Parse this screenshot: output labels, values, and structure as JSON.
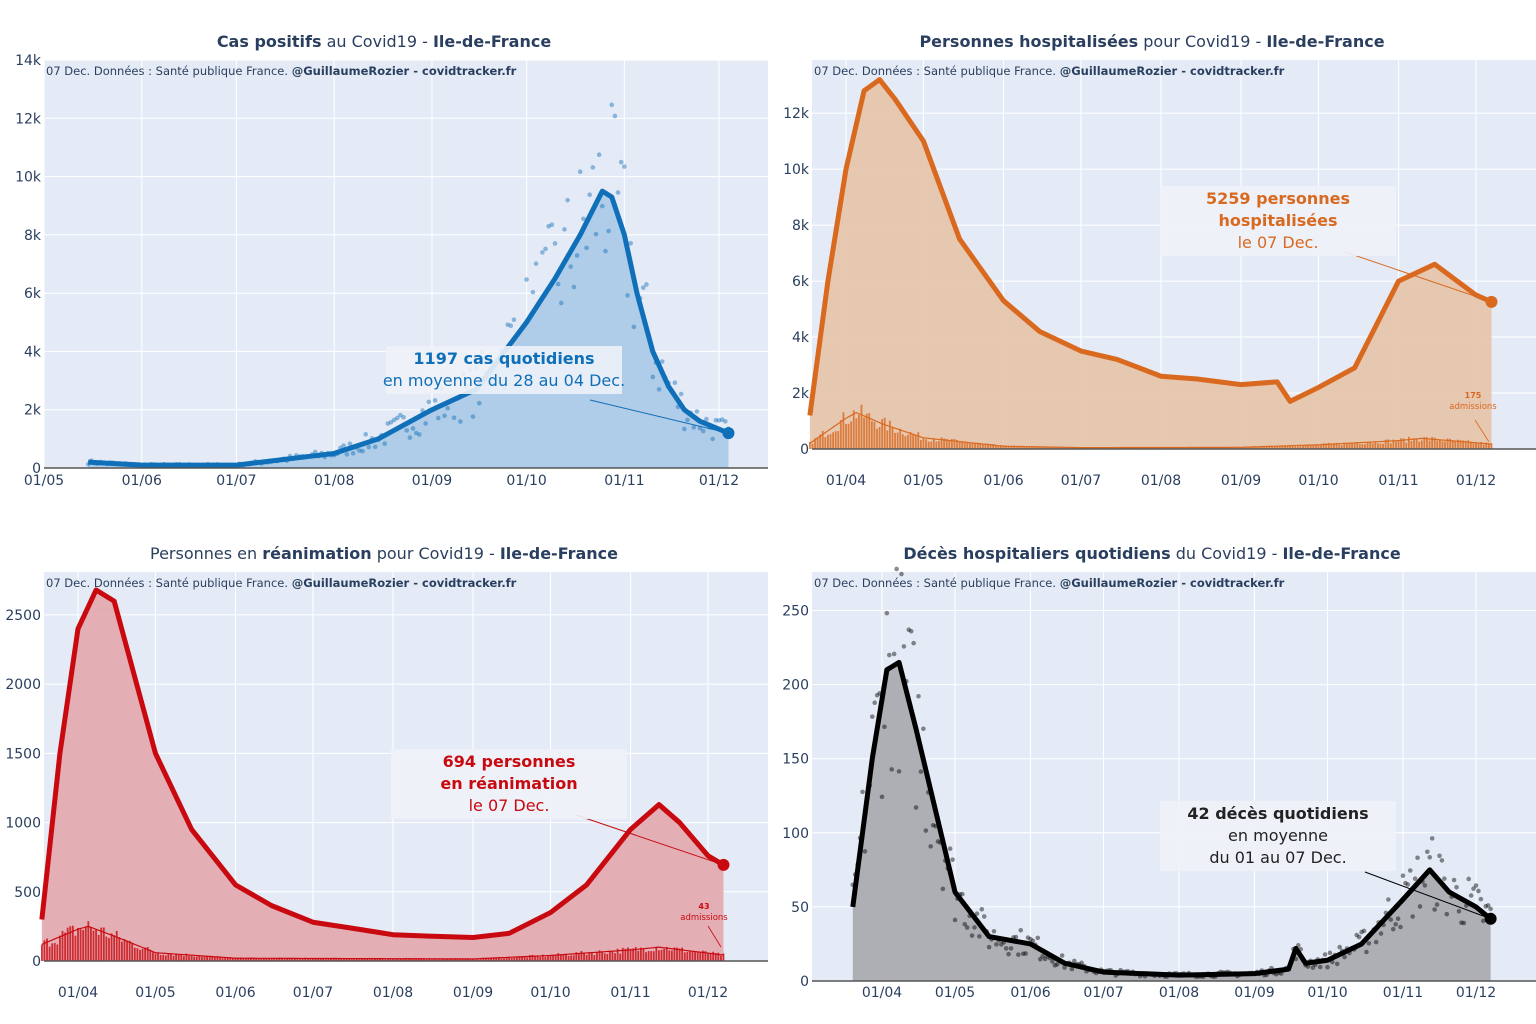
{
  "source_note": [
    "07 Dec. Données : Santé publique France. ",
    "@GuillaumeRozier - covidtracker.fr"
  ],
  "chart_data": [
    {
      "type": "line",
      "title": [
        {
          "text": "Cas positifs",
          "bold": true
        },
        {
          "text": " au Covid19 - ",
          "bold": false
        },
        {
          "text": "Ile-de-France",
          "bold": true
        }
      ],
      "color": "#0f6fb8",
      "fill": "#a9c9e7",
      "yticks": [
        0,
        2000,
        4000,
        6000,
        8000,
        10000,
        12000,
        14000
      ],
      "ytick_labels": [
        "0",
        "2k",
        "4k",
        "6k",
        "8k",
        "10k",
        "12k",
        "14k"
      ],
      "ylim": [
        0,
        14000
      ],
      "xticks": [
        "2020-05-01",
        "2020-06-01",
        "2020-07-01",
        "2020-08-01",
        "2020-09-01",
        "2020-10-01",
        "2020-11-01",
        "2020-12-01"
      ],
      "xtick_labels": [
        "01/05",
        "01/06",
        "01/07",
        "01/08",
        "01/09",
        "01/10",
        "01/11",
        "01/12"
      ],
      "scatter": true,
      "series": {
        "x": [
          "2020-05-15",
          "2020-06-01",
          "2020-07-01",
          "2020-08-01",
          "2020-08-15",
          "2020-09-01",
          "2020-09-15",
          "2020-10-01",
          "2020-10-10",
          "2020-10-18",
          "2020-10-25",
          "2020-10-28",
          "2020-11-01",
          "2020-11-05",
          "2020-11-10",
          "2020-11-15",
          "2020-11-20",
          "2020-11-25",
          "2020-12-04"
        ],
        "y": [
          200,
          100,
          100,
          500,
          1000,
          2000,
          2700,
          5000,
          6500,
          8000,
          9500,
          9300,
          8000,
          6000,
          4000,
          2800,
          2000,
          1600,
          1197
        ]
      },
      "annotation": {
        "lines": [
          "1197 cas quotidiens",
          "en moyenne du 28 au 04 Dec."
        ],
        "bold": [
          true,
          false
        ]
      }
    },
    {
      "type": "area",
      "title": [
        {
          "text": "Personnes hospitalisées",
          "bold": true
        },
        {
          "text": " pour Covid19 - ",
          "bold": false
        },
        {
          "text": "Ile-de-France",
          "bold": true
        }
      ],
      "color": "#d9691f",
      "fill": "#e6c3a8",
      "yticks": [
        0,
        2000,
        4000,
        6000,
        8000,
        10000,
        12000
      ],
      "ytick_labels": [
        "0",
        "2k",
        "4k",
        "6k",
        "8k",
        "10k",
        "12k"
      ],
      "ylim": [
        0,
        13900
      ],
      "xticks": [
        "2020-04-01",
        "2020-05-01",
        "2020-06-01",
        "2020-07-01",
        "2020-08-01",
        "2020-09-01",
        "2020-10-01",
        "2020-11-01",
        "2020-12-01"
      ],
      "xtick_labels": [
        "01/04",
        "01/05",
        "01/06",
        "01/07",
        "01/08",
        "01/09",
        "01/10",
        "01/11",
        "01/12"
      ],
      "scatter": false,
      "series": {
        "x": [
          "2020-03-18",
          "2020-03-25",
          "2020-04-01",
          "2020-04-08",
          "2020-04-14",
          "2020-04-20",
          "2020-05-01",
          "2020-05-15",
          "2020-06-01",
          "2020-06-15",
          "2020-07-01",
          "2020-07-15",
          "2020-08-01",
          "2020-08-15",
          "2020-09-01",
          "2020-09-15",
          "2020-09-20",
          "2020-10-01",
          "2020-10-15",
          "2020-11-01",
          "2020-11-15",
          "2020-12-01",
          "2020-12-07"
        ],
        "y": [
          1200,
          6000,
          10000,
          12800,
          13200,
          12500,
          11000,
          7500,
          5300,
          4200,
          3500,
          3200,
          2600,
          2500,
          2300,
          2400,
          1700,
          2200,
          2900,
          6000,
          6600,
          5500,
          5259
        ]
      },
      "admissions": {
        "x": [
          "2020-03-18",
          "2020-04-01",
          "2020-04-05",
          "2020-04-15",
          "2020-05-01",
          "2020-06-01",
          "2020-07-01",
          "2020-09-01",
          "2020-10-01",
          "2020-11-01",
          "2020-11-10",
          "2020-12-07"
        ],
        "y": [
          200,
          1100,
          1300,
          900,
          400,
          100,
          50,
          60,
          150,
          300,
          380,
          175
        ],
        "label": [
          "175",
          "admissions"
        ]
      },
      "annotation": {
        "lines": [
          "5259 personnes",
          "hospitalisées",
          "le 07 Dec."
        ],
        "bold": [
          true,
          true,
          false
        ]
      }
    },
    {
      "type": "area",
      "title": [
        {
          "text": "Personnes en ",
          "bold": false
        },
        {
          "text": "réanimation",
          "bold": true
        },
        {
          "text": " pour Covid19 - ",
          "bold": false
        },
        {
          "text": "Ile-de-France",
          "bold": true
        }
      ],
      "color": "#c80a10",
      "fill": "#e3a7ae",
      "yticks": [
        0,
        500,
        1000,
        1500,
        2000,
        2500
      ],
      "ytick_labels": [
        "0",
        "500",
        "1000",
        "1500",
        "2000",
        "2500"
      ],
      "ylim": [
        0,
        2810
      ],
      "xticks": [
        "2020-04-01",
        "2020-05-01",
        "2020-06-01",
        "2020-07-01",
        "2020-08-01",
        "2020-09-01",
        "2020-10-01",
        "2020-11-01",
        "2020-12-01"
      ],
      "xtick_labels": [
        "01/04",
        "01/05",
        "01/06",
        "01/07",
        "01/08",
        "01/09",
        "01/10",
        "01/11",
        "01/12"
      ],
      "scatter": false,
      "series": {
        "x": [
          "2020-03-18",
          "2020-03-25",
          "2020-04-01",
          "2020-04-08",
          "2020-04-15",
          "2020-05-01",
          "2020-05-15",
          "2020-06-01",
          "2020-06-15",
          "2020-07-01",
          "2020-07-15",
          "2020-08-01",
          "2020-08-15",
          "2020-09-01",
          "2020-09-15",
          "2020-10-01",
          "2020-10-15",
          "2020-11-01",
          "2020-11-12",
          "2020-11-20",
          "2020-12-01",
          "2020-12-07"
        ],
        "y": [
          300,
          1500,
          2400,
          2680,
          2600,
          1500,
          950,
          550,
          400,
          280,
          240,
          190,
          180,
          170,
          200,
          350,
          550,
          950,
          1130,
          1000,
          760,
          694
        ]
      },
      "admissions": {
        "x": [
          "2020-03-18",
          "2020-04-01",
          "2020-04-05",
          "2020-04-15",
          "2020-05-01",
          "2020-06-01",
          "2020-09-01",
          "2020-10-01",
          "2020-11-01",
          "2020-11-12",
          "2020-12-07"
        ],
        "y": [
          120,
          230,
          250,
          180,
          60,
          20,
          15,
          40,
          80,
          100,
          43
        ],
        "label": [
          "43",
          "admissions"
        ]
      },
      "annotation": {
        "lines": [
          "694 personnes",
          "en réanimation",
          "le 07 Dec."
        ],
        "bold": [
          true,
          true,
          false
        ]
      }
    },
    {
      "type": "line",
      "title": [
        {
          "text": "Décès hospitaliers quotidiens",
          "bold": true
        },
        {
          "text": " du Covid19 - ",
          "bold": false
        },
        {
          "text": "Ile-de-France",
          "bold": true
        }
      ],
      "color": "#000000",
      "fill": "#a6a9ae",
      "yticks": [
        0,
        50,
        100,
        150,
        200,
        250
      ],
      "ytick_labels": [
        "0",
        "50",
        "100",
        "150",
        "200",
        "250"
      ],
      "ylim": [
        0,
        276
      ],
      "xticks": [
        "2020-04-01",
        "2020-05-01",
        "2020-06-01",
        "2020-07-01",
        "2020-08-01",
        "2020-09-01",
        "2020-10-01",
        "2020-11-01",
        "2020-12-01"
      ],
      "xtick_labels": [
        "01/04",
        "01/05",
        "01/06",
        "01/07",
        "01/08",
        "01/09",
        "01/10",
        "01/11",
        "01/12"
      ],
      "scatter": true,
      "series": {
        "x": [
          "2020-03-20",
          "2020-03-28",
          "2020-04-03",
          "2020-04-08",
          "2020-04-15",
          "2020-05-01",
          "2020-05-15",
          "2020-06-01",
          "2020-06-15",
          "2020-07-01",
          "2020-08-01",
          "2020-09-01",
          "2020-09-15",
          "2020-09-18",
          "2020-09-22",
          "2020-10-01",
          "2020-10-15",
          "2020-11-01",
          "2020-11-12",
          "2020-11-20",
          "2020-12-01",
          "2020-12-07"
        ],
        "y": [
          50,
          150,
          210,
          215,
          170,
          60,
          30,
          25,
          12,
          6,
          4,
          5,
          8,
          22,
          12,
          14,
          25,
          55,
          75,
          60,
          50,
          42
        ]
      },
      "annotation": {
        "lines": [
          "42 décès quotidiens",
          "en moyenne",
          "du 01 au 07 Dec."
        ],
        "bold": [
          true,
          false,
          false
        ]
      }
    }
  ]
}
